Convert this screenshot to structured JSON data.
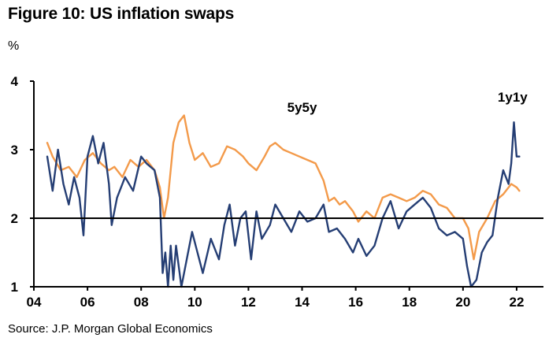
{
  "figure": {
    "title": "Figure 10: US inflation swaps",
    "unit": "%",
    "source": "Source: J.P. Morgan Global Economics"
  },
  "colors": {
    "series_1y1y": "#253e74",
    "series_5y5y": "#f39a4a",
    "axis": "#000000"
  },
  "chart_data": {
    "type": "line",
    "title": "Figure 10: US inflation swaps",
    "ylabel": "%",
    "xlabel": "",
    "xlim": [
      2004.0,
      2023.0
    ],
    "ylim": [
      1,
      4
    ],
    "yticks": [
      1,
      2,
      3,
      4
    ],
    "ytick_labels": [
      "1",
      "2",
      "3",
      "4"
    ],
    "xticks": [
      2004,
      2006,
      2008,
      2010,
      2012,
      2014,
      2016,
      2018,
      2020,
      2022
    ],
    "xtick_labels": [
      "04",
      "06",
      "08",
      "10",
      "12",
      "14",
      "16",
      "18",
      "20",
      "22"
    ],
    "reference_line": 2,
    "grid": false,
    "series": [
      {
        "name": "5y5y",
        "color_key": "series_5y5y",
        "x": [
          2004.5,
          2004.7,
          2005.0,
          2005.3,
          2005.6,
          2005.9,
          2006.2,
          2006.5,
          2006.8,
          2007.0,
          2007.3,
          2007.6,
          2007.9,
          2008.2,
          2008.5,
          2008.7,
          2008.85,
          2009.0,
          2009.2,
          2009.4,
          2009.6,
          2009.8,
          2010.0,
          2010.3,
          2010.6,
          2010.9,
          2011.2,
          2011.5,
          2011.8,
          2012.0,
          2012.3,
          2012.6,
          2012.8,
          2013.0,
          2013.3,
          2013.6,
          2013.9,
          2014.2,
          2014.5,
          2014.8,
          2015.0,
          2015.2,
          2015.4,
          2015.6,
          2015.9,
          2016.1,
          2016.4,
          2016.7,
          2017.0,
          2017.3,
          2017.6,
          2017.9,
          2018.2,
          2018.5,
          2018.8,
          2019.1,
          2019.4,
          2019.7,
          2020.0,
          2020.2,
          2020.4,
          2020.6,
          2020.9,
          2021.2,
          2021.5,
          2021.8,
          2022.0,
          2022.1
        ],
        "values": [
          3.1,
          2.9,
          2.7,
          2.75,
          2.6,
          2.85,
          2.95,
          2.8,
          2.7,
          2.75,
          2.6,
          2.85,
          2.75,
          2.85,
          2.7,
          2.45,
          2.0,
          2.3,
          3.1,
          3.4,
          3.5,
          3.1,
          2.85,
          2.95,
          2.75,
          2.8,
          3.05,
          3.0,
          2.9,
          2.8,
          2.7,
          2.9,
          3.05,
          3.1,
          3.0,
          2.95,
          2.9,
          2.85,
          2.8,
          2.55,
          2.25,
          2.3,
          2.2,
          2.25,
          2.1,
          1.95,
          2.1,
          2.0,
          2.3,
          2.35,
          2.3,
          2.25,
          2.3,
          2.4,
          2.35,
          2.2,
          2.15,
          2.0,
          2.0,
          1.85,
          1.4,
          1.8,
          2.0,
          2.25,
          2.35,
          2.5,
          2.45,
          2.4
        ]
      },
      {
        "name": "1y1y",
        "color_key": "series_1y1y",
        "x": [
          2004.5,
          2004.7,
          2004.9,
          2005.1,
          2005.3,
          2005.5,
          2005.7,
          2005.85,
          2006.0,
          2006.2,
          2006.4,
          2006.6,
          2006.8,
          2006.9,
          2007.1,
          2007.4,
          2007.7,
          2008.0,
          2008.2,
          2008.5,
          2008.7,
          2008.8,
          2008.9,
          2009.0,
          2009.1,
          2009.2,
          2009.3,
          2009.5,
          2009.7,
          2009.9,
          2010.1,
          2010.3,
          2010.6,
          2010.9,
          2011.1,
          2011.3,
          2011.5,
          2011.7,
          2011.9,
          2012.1,
          2012.3,
          2012.5,
          2012.8,
          2013.0,
          2013.3,
          2013.6,
          2013.9,
          2014.2,
          2014.5,
          2014.8,
          2015.0,
          2015.3,
          2015.6,
          2015.9,
          2016.1,
          2016.4,
          2016.7,
          2017.0,
          2017.3,
          2017.6,
          2017.9,
          2018.2,
          2018.5,
          2018.8,
          2019.1,
          2019.4,
          2019.7,
          2020.0,
          2020.15,
          2020.3,
          2020.5,
          2020.7,
          2020.9,
          2021.1,
          2021.3,
          2021.5,
          2021.7,
          2021.8,
          2021.9,
          2022.0,
          2022.1
        ],
        "values": [
          2.9,
          2.4,
          3.0,
          2.5,
          2.2,
          2.6,
          2.3,
          1.75,
          2.9,
          3.2,
          2.8,
          3.1,
          2.5,
          1.9,
          2.3,
          2.6,
          2.4,
          2.9,
          2.8,
          2.7,
          2.3,
          1.2,
          1.5,
          1.0,
          1.6,
          1.1,
          1.6,
          1.0,
          1.4,
          1.8,
          1.5,
          1.2,
          1.7,
          1.4,
          1.9,
          2.2,
          1.6,
          2.0,
          2.1,
          1.4,
          2.1,
          1.7,
          1.9,
          2.2,
          2.0,
          1.8,
          2.1,
          1.95,
          2.0,
          2.2,
          1.8,
          1.85,
          1.7,
          1.5,
          1.7,
          1.45,
          1.6,
          2.0,
          2.25,
          1.85,
          2.1,
          2.2,
          2.3,
          2.15,
          1.85,
          1.75,
          1.8,
          1.7,
          1.3,
          1.0,
          1.1,
          1.5,
          1.65,
          1.75,
          2.3,
          2.7,
          2.5,
          2.8,
          3.4,
          2.9,
          2.9
        ]
      }
    ],
    "annotations": [
      {
        "text": "5y5y",
        "series": "5y5y",
        "x": 2014.0,
        "y": 3.55
      },
      {
        "text": "1y1y",
        "series": "1y1y",
        "x": 2021.85,
        "y": 3.7
      }
    ]
  }
}
